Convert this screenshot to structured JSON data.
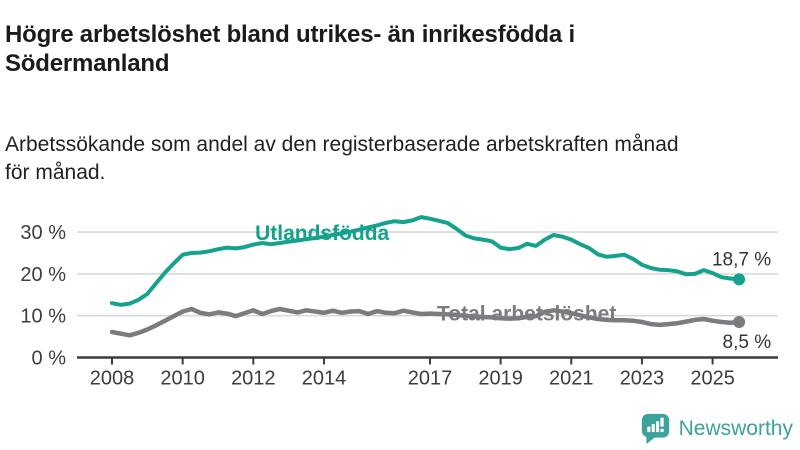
{
  "header": {
    "title_line1": "Högre arbetslöshet bland utrikes- än inrikesfödda i",
    "title_line2": "Södermanland",
    "subtitle_line1": "Arbetssökande som andel av den registerbaserade arbetskraften månad",
    "subtitle_line2": "för månad."
  },
  "chart_data": {
    "type": "line",
    "title": "Högre arbetslöshet bland utrikes- än inrikesfödda i Södermanland",
    "subtitle": "Arbetssökande som andel av den registerbaserade arbetskraften månad för månad.",
    "x_unit": "year",
    "x_start": 2008.0,
    "x_step": 0.25,
    "xlim": [
      2007.0,
      2026.85
    ],
    "ylim": [
      0,
      36
    ],
    "grid": "horizontal",
    "legend_position": "inline-labels",
    "y_ticks": [
      {
        "value": 0,
        "label": "0 %"
      },
      {
        "value": 10,
        "label": "10 %"
      },
      {
        "value": 20,
        "label": "20 %"
      },
      {
        "value": 30,
        "label": "30 %"
      }
    ],
    "x_ticks": [
      {
        "value": 2008,
        "label": "2008"
      },
      {
        "value": 2010,
        "label": "2010"
      },
      {
        "value": 2012,
        "label": "2012"
      },
      {
        "value": 2014,
        "label": "2014"
      },
      {
        "value": 2017,
        "label": "2017"
      },
      {
        "value": 2019,
        "label": "2019"
      },
      {
        "value": 2021,
        "label": "2021"
      },
      {
        "value": 2023,
        "label": "2023"
      },
      {
        "value": 2025,
        "label": "2025"
      }
    ],
    "series": [
      {
        "id": "utlandsfodda",
        "name": "Utlandsfödda",
        "color": "#14a28c",
        "line_width": 4,
        "label_x": 2012.05,
        "label_y": 29.9,
        "end_label": "18,7 %",
        "end_value": 18.7,
        "values": [
          13.0,
          12.6,
          12.9,
          13.8,
          15.2,
          17.8,
          20.3,
          22.5,
          24.6,
          25.0,
          25.1,
          25.4,
          25.9,
          26.3,
          26.1,
          26.4,
          27.0,
          27.4,
          27.1,
          27.4,
          27.7,
          28.0,
          28.3,
          28.6,
          28.9,
          29.3,
          29.7,
          30.1,
          30.6,
          31.1,
          31.6,
          32.2,
          32.6,
          32.4,
          32.8,
          33.6,
          33.2,
          32.7,
          32.2,
          30.8,
          29.2,
          28.5,
          28.2,
          27.8,
          26.3,
          25.9,
          26.2,
          27.2,
          26.7,
          28.2,
          29.3,
          28.9,
          28.2,
          27.1,
          26.2,
          24.7,
          24.1,
          24.3,
          24.6,
          23.6,
          22.2,
          21.4,
          21.0,
          20.9,
          20.6,
          19.9,
          20.0,
          20.9,
          20.2,
          19.2,
          18.9,
          18.7
        ]
      },
      {
        "id": "total-arbetsloshet",
        "name": "Total arbetslöshet",
        "color": "#7b7b80",
        "line_width": 4.5,
        "label_x": 2017.2,
        "label_y": 10.6,
        "end_label": "8,5 %",
        "end_value": 8.5,
        "values": [
          6.1,
          5.7,
          5.3,
          5.9,
          6.7,
          7.7,
          8.8,
          9.9,
          11.0,
          11.6,
          10.7,
          10.3,
          10.8,
          10.5,
          9.9,
          10.6,
          11.3,
          10.4,
          11.1,
          11.6,
          11.2,
          10.8,
          11.3,
          11.0,
          10.7,
          11.2,
          10.7,
          11.0,
          11.1,
          10.4,
          11.1,
          10.7,
          10.6,
          11.2,
          10.8,
          10.4,
          10.5,
          10.4,
          10.3,
          10.2,
          10.0,
          9.8,
          9.7,
          9.6,
          9.4,
          9.3,
          9.4,
          9.7,
          9.9,
          10.9,
          11.3,
          11.0,
          10.6,
          10.1,
          9.6,
          9.2,
          9.0,
          8.9,
          8.9,
          8.8,
          8.5,
          8.0,
          7.8,
          8.0,
          8.2,
          8.6,
          9.0,
          9.2,
          8.8,
          8.5,
          8.3,
          8.5
        ]
      }
    ],
    "colors": {
      "axis": "#3c3c3c",
      "grid": "#d9d9d9",
      "tick_text": "#3d3d3d",
      "end_label_text": "#333333"
    }
  },
  "footer": {
    "brand": "Newsworthy",
    "logo_icon": "newsworthy-speech-bubble-bars-icon",
    "logo_color": "#3da19c"
  }
}
